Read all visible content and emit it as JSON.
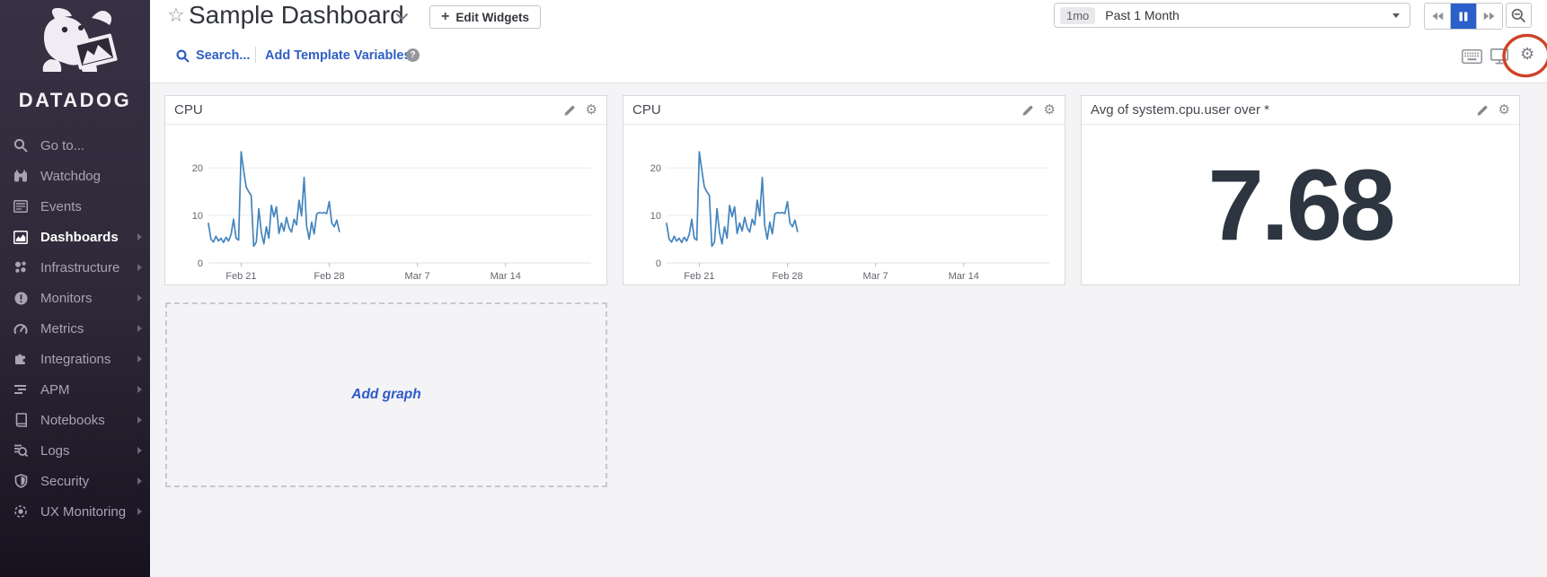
{
  "sidebar": {
    "brand": "DATADOG",
    "logo_icon": "datadog-dog-logo",
    "items": [
      {
        "label": "Go to...",
        "icon": "search-icon",
        "active": false,
        "has_submenu": false
      },
      {
        "label": "Watchdog",
        "icon": "binoculars-icon",
        "active": false,
        "has_submenu": false
      },
      {
        "label": "Events",
        "icon": "events-list-icon",
        "active": false,
        "has_submenu": false
      },
      {
        "label": "Dashboards",
        "icon": "area-chart-icon",
        "active": true,
        "has_submenu": true
      },
      {
        "label": "Infrastructure",
        "icon": "host-cluster-icon",
        "active": false,
        "has_submenu": true
      },
      {
        "label": "Monitors",
        "icon": "alert-circle-icon",
        "active": false,
        "has_submenu": true
      },
      {
        "label": "Metrics",
        "icon": "gauge-icon",
        "active": false,
        "has_submenu": true
      },
      {
        "label": "Integrations",
        "icon": "puzzle-icon",
        "active": false,
        "has_submenu": true
      },
      {
        "label": "APM",
        "icon": "trace-lines-icon",
        "active": false,
        "has_submenu": true
      },
      {
        "label": "Notebooks",
        "icon": "notebook-icon",
        "active": false,
        "has_submenu": true
      },
      {
        "label": "Logs",
        "icon": "log-search-icon",
        "active": false,
        "has_submenu": true
      },
      {
        "label": "Security",
        "icon": "shield-icon",
        "active": false,
        "has_submenu": true
      },
      {
        "label": "UX Monitoring",
        "icon": "target-icon",
        "active": false,
        "has_submenu": true
      }
    ]
  },
  "header": {
    "title": "Sample Dashboard",
    "title_icons": [
      "star-icon",
      "chevron-down-icon"
    ],
    "edit_widgets_label": "Edit Widgets",
    "edit_widgets_icon": "plus-icon",
    "right_icons": [
      "keyboard-icon",
      "monitor-icon",
      "gear-icon"
    ],
    "annotation": {
      "shape": "hand-drawn-ellipse",
      "around": "gear-icon",
      "color": "#cd4327"
    }
  },
  "toolbar": {
    "search_label": "Search...",
    "search_icon": "search-icon",
    "add_template_variables_label": "Add Template Variables",
    "help_icon": "question-help-icon"
  },
  "timebar": {
    "badge": "1mo",
    "label": "Past 1 Month",
    "dropdown_icon": "caret-down-icon",
    "controls": [
      {
        "name": "rewind-button",
        "icon": "rewind-icon",
        "active": false
      },
      {
        "name": "pause-button",
        "icon": "pause-icon",
        "active": true,
        "color": "#2b5fc9"
      },
      {
        "name": "forward-button",
        "icon": "forward-icon",
        "active": false
      }
    ],
    "zoom_button_icon": "zoom-out-icon"
  },
  "widgets": [
    {
      "title": "CPU",
      "type": "timeseries",
      "actions": [
        "edit-pencil-icon",
        "gear-icon"
      ]
    },
    {
      "title": "CPU",
      "type": "timeseries",
      "actions": [
        "edit-pencil-icon",
        "gear-icon"
      ]
    },
    {
      "title": "Avg of system.cpu.user over *",
      "type": "query_value",
      "value": "7.68",
      "actions": [
        "edit-pencil-icon",
        "gear-icon"
      ]
    }
  ],
  "add_graph": {
    "label": "Add graph"
  },
  "colors": {
    "link_blue": "#2f5fc4",
    "chart_line": "#4384bd",
    "pause_active": "#2b5fc9",
    "annotation_red": "#cd4327",
    "big_number": "#2c3540"
  },
  "chart_data": [
    {
      "type": "line",
      "title": "CPU",
      "xlabel": "",
      "ylabel": "",
      "ylim": [
        0,
        27
      ],
      "y_ticks": [
        0,
        10,
        20
      ],
      "grid": true,
      "legend": "none",
      "x_axis": {
        "span_days": 30.4,
        "ticks": [
          {
            "day": 2.6,
            "label": "Feb 21"
          },
          {
            "day": 9.6,
            "label": "Feb 28"
          },
          {
            "day": 16.6,
            "label": "Mar 7"
          },
          {
            "day": 23.6,
            "label": "Mar 14"
          }
        ]
      },
      "series": [
        {
          "name": "system.cpu.user",
          "color": "#4384bd",
          "start_day": 0,
          "end_day": 10.4,
          "values": [
            8.3,
            5,
            4.4,
            5.6,
            4.6,
            5.2,
            4.3,
            5.4,
            4.6,
            6,
            9.2,
            5.2,
            4.8,
            23.4,
            19.5,
            16,
            15,
            14.2,
            3.5,
            4.4,
            11.4,
            6.4,
            4,
            7.6,
            5.2,
            12.1,
            9.7,
            11.8,
            6.2,
            8.4,
            6.7,
            9.6,
            7.4,
            6.5,
            9.2,
            8,
            13.2,
            9.9,
            18,
            7.8,
            5,
            8.6,
            6.1,
            10.3,
            10.6,
            10.5,
            10.6,
            10.4,
            12.9,
            8.4,
            7.6,
            9,
            6.6
          ]
        }
      ]
    },
    {
      "type": "line",
      "title": "CPU",
      "xlabel": "",
      "ylabel": "",
      "ylim": [
        0,
        27
      ],
      "y_ticks": [
        0,
        10,
        20
      ],
      "grid": true,
      "legend": "none",
      "x_axis": {
        "span_days": 30.4,
        "ticks": [
          {
            "day": 2.6,
            "label": "Feb 21"
          },
          {
            "day": 9.6,
            "label": "Feb 28"
          },
          {
            "day": 16.6,
            "label": "Mar 7"
          },
          {
            "day": 23.6,
            "label": "Mar 14"
          }
        ]
      },
      "series": [
        {
          "name": "system.cpu.user",
          "color": "#4384bd",
          "start_day": 0,
          "end_day": 10.4,
          "values": [
            8.3,
            5,
            4.4,
            5.6,
            4.6,
            5.2,
            4.3,
            5.4,
            4.6,
            6,
            9.2,
            5.2,
            4.8,
            23.4,
            19.5,
            16,
            15,
            14.2,
            3.5,
            4.4,
            11.4,
            6.4,
            4,
            7.6,
            5.2,
            12.1,
            9.7,
            11.8,
            6.2,
            8.4,
            6.7,
            9.6,
            7.4,
            6.5,
            9.2,
            8,
            13.2,
            9.9,
            18,
            7.8,
            5,
            8.6,
            6.1,
            10.3,
            10.6,
            10.5,
            10.6,
            10.4,
            12.9,
            8.4,
            7.6,
            9,
            6.6
          ]
        }
      ]
    },
    {
      "type": "query_value",
      "title": "Avg of system.cpu.user over *",
      "value": 7.68
    }
  ]
}
